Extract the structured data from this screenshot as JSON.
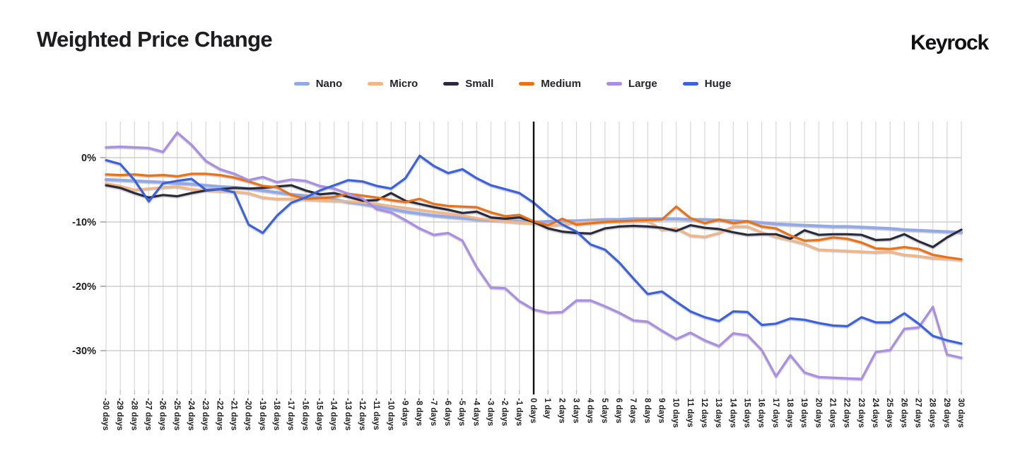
{
  "header": {
    "title": "Weighted Price Change",
    "brand": "Keyrock"
  },
  "chart_data": {
    "type": "line",
    "title": "Weighted Price Change",
    "x_range": [
      -30,
      30
    ],
    "x_unit": "days",
    "x_unit_singular": "day",
    "x_tick_step": 1,
    "marker_x": 0,
    "ylim": [
      -36.2,
      5.6
    ],
    "grid": "on",
    "legend_position": "top",
    "y_ticks": [
      {
        "label": "0%",
        "value": 0
      },
      {
        "label": "-10%",
        "value": -10
      },
      {
        "label": "-20%",
        "value": -20
      },
      {
        "label": "-30%",
        "value": -30
      }
    ],
    "series": [
      {
        "name": "Nano",
        "color": "#93a9e6",
        "values": [
          -3.4,
          -3.5,
          -3.6,
          -3.7,
          -3.8,
          -4.0,
          -4.1,
          -4.3,
          -4.5,
          -4.6,
          -4.8,
          -5.1,
          -5.4,
          -5.7,
          -5.9,
          -6.2,
          -6.5,
          -6.9,
          -7.2,
          -7.6,
          -8.0,
          -8.4,
          -8.7,
          -9.0,
          -9.2,
          -9.4,
          -9.6,
          -9.7,
          -9.8,
          -9.9,
          -10.0,
          -9.9,
          -9.8,
          -9.8,
          -9.7,
          -9.6,
          -9.6,
          -9.5,
          -9.5,
          -9.5,
          -9.5,
          -9.6,
          -9.6,
          -9.7,
          -9.8,
          -9.9,
          -10.1,
          -10.3,
          -10.4,
          -10.5,
          -10.6,
          -10.7,
          -10.7,
          -10.8,
          -10.9,
          -11.0,
          -11.2,
          -11.3,
          -11.4,
          -11.5,
          -11.6
        ]
      },
      {
        "name": "Micro",
        "color": "#f4b584",
        "values": [
          -4.0,
          -4.4,
          -5.0,
          -4.8,
          -4.6,
          -4.5,
          -4.9,
          -5.1,
          -5.2,
          -5.3,
          -5.5,
          -6.2,
          -6.4,
          -6.4,
          -6.5,
          -6.6,
          -6.7,
          -6.8,
          -7.0,
          -7.2,
          -7.5,
          -7.8,
          -8.1,
          -8.4,
          -8.7,
          -9.0,
          -9.4,
          -9.7,
          -9.9,
          -10.1,
          -10.2,
          -10.6,
          -10.4,
          -10.1,
          -10.0,
          -10.0,
          -9.9,
          -9.9,
          -9.8,
          -11.2,
          -11.0,
          -12.1,
          -12.3,
          -11.7,
          -10.7,
          -10.7,
          -11.6,
          -12.3,
          -12.8,
          -13.4,
          -14.3,
          -14.4,
          -14.5,
          -14.6,
          -14.7,
          -14.6,
          -15.1,
          -15.3,
          -15.6,
          -15.7,
          -15.9
        ]
      },
      {
        "name": "Small",
        "color": "#29293e",
        "values": [
          -4.3,
          -4.7,
          -5.5,
          -6.2,
          -5.8,
          -6.0,
          -5.5,
          -5.1,
          -4.9,
          -4.7,
          -4.8,
          -4.7,
          -4.5,
          -4.3,
          -5.1,
          -5.7,
          -5.5,
          -6.1,
          -6.7,
          -6.6,
          -5.5,
          -6.7,
          -7.2,
          -7.7,
          -8.1,
          -8.6,
          -8.4,
          -9.3,
          -9.5,
          -9.3,
          -10.0,
          -11.0,
          -11.5,
          -11.7,
          -11.8,
          -11.0,
          -10.7,
          -10.6,
          -10.7,
          -10.9,
          -11.4,
          -10.5,
          -10.9,
          -11.1,
          -11.6,
          -12.0,
          -11.9,
          -11.9,
          -12.6,
          -11.3,
          -12.0,
          -11.9,
          -11.9,
          -12.0,
          -12.8,
          -12.7,
          -11.9,
          -13.0,
          -13.9,
          -12.4,
          -11.2
        ]
      },
      {
        "name": "Medium",
        "color": "#e87312",
        "values": [
          -2.6,
          -2.7,
          -2.6,
          -2.8,
          -2.7,
          -2.9,
          -2.5,
          -2.5,
          -2.7,
          -3.1,
          -3.7,
          -4.4,
          -4.6,
          -5.8,
          -6.4,
          -6.3,
          -6.1,
          -5.6,
          -5.9,
          -6.2,
          -6.6,
          -6.9,
          -6.4,
          -7.2,
          -7.5,
          -7.6,
          -7.7,
          -8.5,
          -9.1,
          -8.9,
          -9.9,
          -10.5,
          -9.5,
          -10.4,
          -10.2,
          -10.0,
          -9.9,
          -9.8,
          -9.7,
          -9.6,
          -7.6,
          -9.4,
          -10.2,
          -9.6,
          -10.2,
          -9.9,
          -10.7,
          -11.0,
          -12.1,
          -12.9,
          -12.8,
          -12.4,
          -12.6,
          -13.2,
          -14.1,
          -14.2,
          -13.9,
          -14.2,
          -15.1,
          -15.5,
          -15.8
        ]
      },
      {
        "name": "Large",
        "color": "#a98ee3",
        "values": [
          1.6,
          1.7,
          1.6,
          1.5,
          0.9,
          3.9,
          2.0,
          -0.5,
          -1.8,
          -2.5,
          -3.5,
          -3.0,
          -3.8,
          -3.4,
          -3.6,
          -4.4,
          -4.8,
          -5.6,
          -6.4,
          -8.0,
          -8.5,
          -9.7,
          -11.0,
          -12.0,
          -11.7,
          -12.9,
          -17.0,
          -20.2,
          -20.3,
          -22.3,
          -23.6,
          -24.1,
          -24.0,
          -22.2,
          -22.2,
          -23.1,
          -24.1,
          -25.3,
          -25.5,
          -26.9,
          -28.2,
          -27.2,
          -28.4,
          -29.3,
          -27.3,
          -27.6,
          -29.9,
          -34.0,
          -30.7,
          -33.4,
          -34.1,
          -34.2,
          -34.3,
          -34.4,
          -30.2,
          -29.9,
          -26.6,
          -26.4,
          -23.2,
          -30.6,
          -31.1
        ]
      },
      {
        "name": "Huge",
        "color": "#3b62dd",
        "values": [
          -0.4,
          -1.0,
          -3.5,
          -6.8,
          -4.0,
          -3.6,
          -3.3,
          -5.0,
          -4.9,
          -5.4,
          -10.4,
          -11.7,
          -9.0,
          -7.0,
          -6.2,
          -5.1,
          -4.3,
          -3.5,
          -3.7,
          -4.4,
          -4.8,
          -3.2,
          0.3,
          -1.3,
          -2.4,
          -1.8,
          -3.2,
          -4.3,
          -4.9,
          -5.5,
          -7.0,
          -8.9,
          -10.4,
          -11.5,
          -13.5,
          -14.3,
          -16.3,
          -18.8,
          -21.2,
          -20.8,
          -22.4,
          -23.9,
          -24.8,
          -25.4,
          -23.9,
          -24.0,
          -26.0,
          -25.8,
          -25.0,
          -25.2,
          -25.7,
          -26.1,
          -26.2,
          -24.8,
          -25.6,
          -25.6,
          -24.2,
          -25.8,
          -27.7,
          -28.4,
          -28.9
        ]
      }
    ]
  }
}
